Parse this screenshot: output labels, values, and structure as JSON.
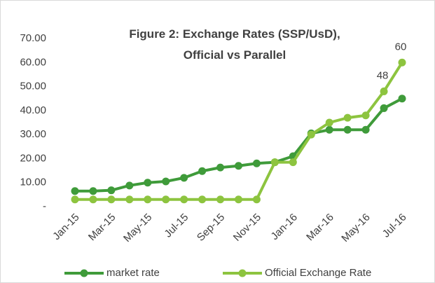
{
  "chart_data": {
    "type": "line",
    "title": "Figure 2: Exchange Rates (SSP/UsD), Official vs Parallel",
    "categories": [
      "Jan-15",
      null,
      "Mar-15",
      null,
      "May-15",
      null,
      "Jul-15",
      null,
      "Sep-15",
      null,
      "Nov-15",
      null,
      "Jan-16",
      null,
      "Mar-16",
      null,
      "May-16",
      null,
      "Jul-16"
    ],
    "series": [
      {
        "name": "market rate",
        "color": "#3f9b3a",
        "values": [
          6.5,
          6.5,
          6.8,
          8.8,
          10,
          10.5,
          12,
          14.8,
          16.3,
          17,
          18,
          18.5,
          21,
          30.5,
          32,
          32,
          32,
          41,
          45
        ]
      },
      {
        "name": "Official Exchange Rate",
        "color": "#8dc43f",
        "values": [
          3,
          3,
          3,
          3,
          3,
          3,
          3,
          3,
          3,
          3,
          3,
          18.5,
          18.5,
          30,
          35,
          37,
          38,
          48,
          60
        ],
        "value_labels": [
          null,
          null,
          null,
          null,
          null,
          null,
          null,
          null,
          null,
          null,
          null,
          null,
          null,
          null,
          null,
          null,
          null,
          "48",
          "60"
        ]
      }
    ],
    "ylim": [
      0,
      70
    ],
    "yticks": [
      {
        "value": 0,
        "label": "-"
      },
      {
        "value": 10,
        "label": "10.00"
      },
      {
        "value": 20,
        "label": "20.00"
      },
      {
        "value": 30,
        "label": "30.00"
      },
      {
        "value": 40,
        "label": "40.00"
      },
      {
        "value": 50,
        "label": "50.00"
      },
      {
        "value": 60,
        "label": "60.00"
      },
      {
        "value": 70,
        "label": "70.00"
      }
    ],
    "grid": false,
    "legend": "bottom"
  }
}
